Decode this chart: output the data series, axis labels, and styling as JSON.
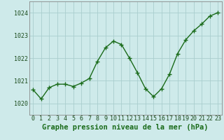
{
  "x": [
    0,
    1,
    2,
    3,
    4,
    5,
    6,
    7,
    8,
    9,
    10,
    11,
    12,
    13,
    14,
    15,
    16,
    17,
    18,
    19,
    20,
    21,
    22,
    23
  ],
  "y": [
    1020.6,
    1020.2,
    1020.7,
    1020.85,
    1020.85,
    1020.75,
    1020.9,
    1021.1,
    1021.85,
    1022.45,
    1022.75,
    1022.6,
    1022.0,
    1021.35,
    1020.65,
    1020.3,
    1020.65,
    1021.3,
    1022.2,
    1022.8,
    1023.2,
    1023.5,
    1023.85,
    1024.0
  ],
  "line_color": "#1a6b1a",
  "marker": "+",
  "marker_size": 4,
  "bg_color": "#ceeaea",
  "grid_color": "#aacece",
  "axis_color": "#888888",
  "xlabel": "Graphe pression niveau de la mer (hPa)",
  "xlabel_fontsize": 7.5,
  "xlabel_color": "#1a6b1a",
  "ylim": [
    1019.5,
    1024.5
  ],
  "xlim": [
    -0.5,
    23.5
  ],
  "yticks": [
    1020,
    1021,
    1022,
    1023,
    1024
  ],
  "xticks": [
    0,
    1,
    2,
    3,
    4,
    5,
    6,
    7,
    8,
    9,
    10,
    11,
    12,
    13,
    14,
    15,
    16,
    17,
    18,
    19,
    20,
    21,
    22,
    23
  ],
  "tick_fontsize": 6,
  "tick_color": "#1a4a1a",
  "linewidth": 1.0
}
